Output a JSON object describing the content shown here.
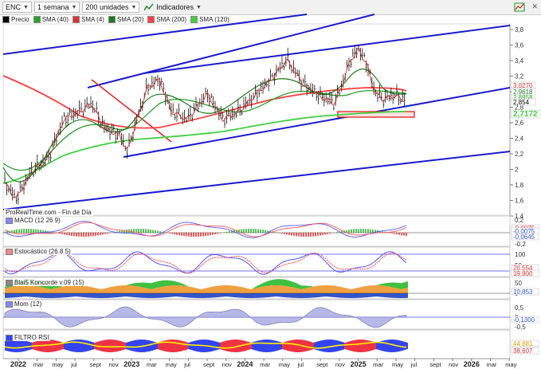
{
  "toolbar": {
    "symbol": "ENC",
    "period": "1 semana",
    "units": "200 unidades",
    "indicators": "Indicadores"
  },
  "legend": [
    {
      "label": "Precio",
      "color": "#000000"
    },
    {
      "label": "SMA (40)",
      "color": "#2aa02a"
    },
    {
      "label": "SMA (4)",
      "color": "#e03030"
    },
    {
      "label": "SMA (20)",
      "color": "#1e7a1e"
    },
    {
      "label": "SMA (200)",
      "color": "#ff4040"
    },
    {
      "label": "SMA (120)",
      "color": "#40d040"
    }
  ],
  "price_axis": {
    "ticks": [
      "3,8",
      "3,6",
      "3,4",
      "3,2",
      "3",
      "2,8",
      "2,6",
      "2,4",
      "2,2",
      "2",
      "1,8",
      "1,6",
      "1,4"
    ],
    "labels": [
      {
        "text": "3,0270",
        "color": "#e03030"
      },
      {
        "text": "2,9618",
        "color": "#1e7a1e"
      },
      {
        "text": "2,8958",
        "color": "#2aa02a"
      },
      {
        "text": "2,854",
        "color": "#000000"
      },
      {
        "text": "2,7172",
        "color": "#40d040"
      }
    ]
  },
  "source_label": "ProRealTime.com - Fin de Día",
  "panels": {
    "macd": {
      "label": "MACD (12 26 9)",
      "ticks": [
        "0,2",
        "0",
        "-0,2"
      ],
      "values": [
        "-0,0075",
        "-0,0075",
        "-0,0645"
      ]
    },
    "stoch": {
      "label": "Estocástico (26 8 5)",
      "ticks": [
        "100",
        "50"
      ],
      "values": [
        "20,554",
        "19,800"
      ]
    },
    "koncorde": {
      "label": "Blai5 Koncorde v.09 (15)",
      "ticks": [
        "50",
        "0"
      ],
      "values": [
        "10,853"
      ]
    },
    "mom": {
      "label": "Mom (12)",
      "ticks": [
        "0,5",
        "0",
        "-0,5"
      ],
      "values": [
        "-0,1300"
      ]
    },
    "rsi": {
      "label": "FILTRO RSI",
      "values": [
        "44,881",
        "38,607"
      ]
    }
  },
  "time_axis": [
    "2022",
    "mar",
    "may",
    "jul",
    "sept",
    "nov",
    "2023",
    "mar",
    "may",
    "jul",
    "sept",
    "nov",
    "2024",
    "mar",
    "may",
    "jul",
    "sept",
    "nov",
    "2025",
    "mar",
    "may",
    "jul",
    "sept",
    "nov",
    "2026",
    "mar",
    "may"
  ]
}
